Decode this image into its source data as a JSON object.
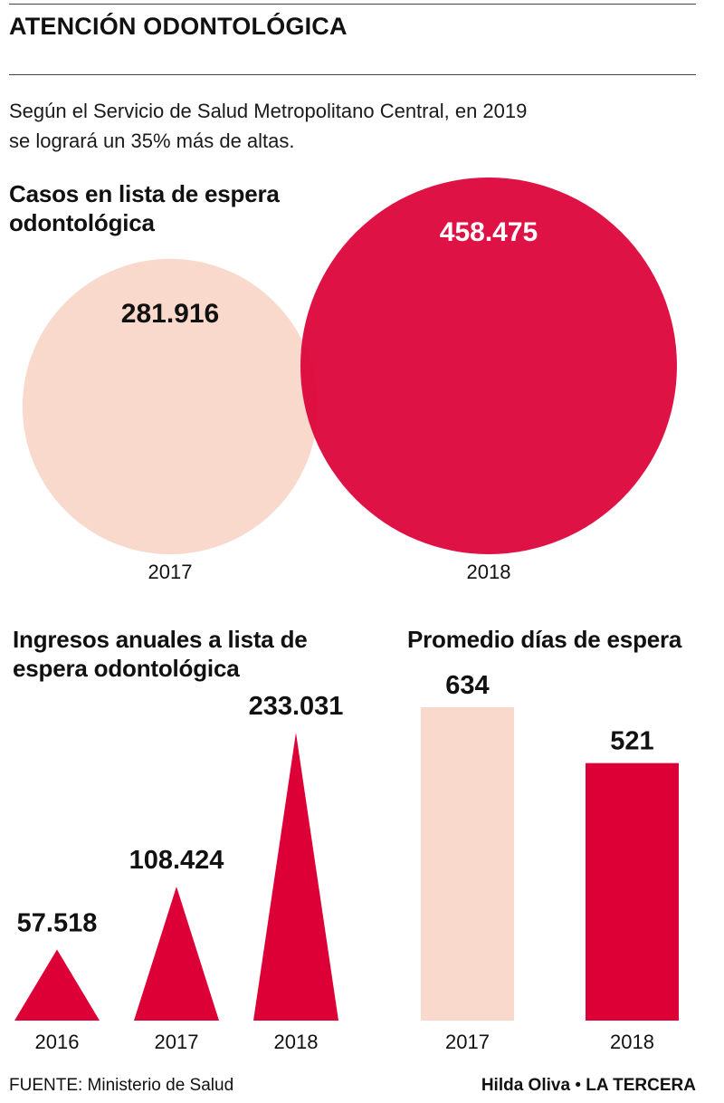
{
  "header": {
    "title": "ATENCIÓN ODONTOLÓGICA",
    "subtitle": "Según el Servicio de Salud Metropolitano Central, en 2019 se logrará un 35% más de altas."
  },
  "colors": {
    "dark": "#DC0036",
    "light": "#F8D9CC",
    "text": "#111111"
  },
  "chart_data": [
    {
      "type": "bubble",
      "title": "Casos en lista de espera odontológica",
      "categories": [
        "2017",
        "2018"
      ],
      "values": [
        281916,
        458475
      ],
      "labels": [
        "281.916",
        "458.475"
      ],
      "colors": [
        "#F8D9CC",
        "#DC0036"
      ]
    },
    {
      "type": "bar",
      "mark": "triangle",
      "title": "Ingresos anuales a lista de espera odontológica",
      "categories": [
        "2016",
        "2017",
        "2018"
      ],
      "values": [
        57518,
        108424,
        233031
      ],
      "labels": [
        "57.518",
        "108.424",
        "233.031"
      ],
      "colors": [
        "#DC0036",
        "#DC0036",
        "#DC0036"
      ]
    },
    {
      "type": "bar",
      "title": "Promedio días de espera",
      "categories": [
        "2017",
        "2018"
      ],
      "values": [
        634,
        521
      ],
      "labels": [
        "634",
        "521"
      ],
      "colors": [
        "#F8D9CC",
        "#DC0036"
      ]
    }
  ],
  "footer": {
    "source": "FUENTE: Ministerio de Salud",
    "author": "Hilda Oliva",
    "separator": "•",
    "publication": "LA TERCERA"
  }
}
